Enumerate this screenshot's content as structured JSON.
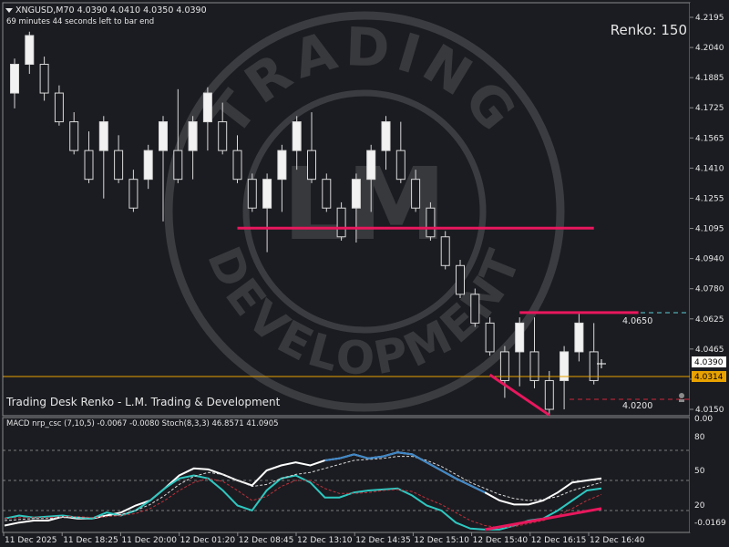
{
  "header": {
    "symbol_line": "XNGUSD,M70  4.0390 4.0410 4.0350 4.0390",
    "countdown": "69 minutes 44 seconds left to bar end",
    "renko_label": "Renko: 150",
    "footer_caption": "Trading Desk Renko - L.M. Trading & Development"
  },
  "watermark": {
    "words": [
      "TRADING",
      "DEVELOPMENT",
      "LM"
    ]
  },
  "price_axis": {
    "ticks": [
      "4.2195",
      "4.2040",
      "4.1885",
      "4.1725",
      "4.1565",
      "4.1410",
      "4.1255",
      "4.1095",
      "4.0940",
      "4.0780",
      "4.0625",
      "4.0465",
      "4.0310",
      "4.0150"
    ],
    "current_price": "4.0390",
    "orange_line_price": "4.0314",
    "orange_line_color": "#e8a200"
  },
  "levels": {
    "upper_dashed": {
      "label": "4.0650",
      "color": "#5ecbd6"
    },
    "lower_dashed": {
      "label": "4.0200",
      "color": "#d1263b"
    }
  },
  "time_axis": [
    "11 Dec 2025",
    "11 Dec 18:25",
    "11 Dec 20:00",
    "12 Dec 01:20",
    "12 Dec 08:45",
    "12 Dec 13:10",
    "12 Dec 14:35",
    "12 Dec 15:10",
    "12 Dec 15:40",
    "12 Dec 16:15",
    "12 Dec 16:40"
  ],
  "indicator": {
    "title": "MACD nrp_csc (7,10,5) -0.0067 -0.0080  Stoch(8,3,3) 46.8571 41.0905",
    "ticks": [
      "80",
      "50",
      "20",
      "-0.0169"
    ],
    "top_tick": "0.00"
  },
  "colors": {
    "background": "#1b1c21",
    "bull_body": "#f2f2f2",
    "bear_body": "#1b1c21",
    "candle_border": "#d9d9d9",
    "trendline": "#e8175d",
    "macd_blue": "#3c86c8",
    "stoch_cyan": "#2ec7c0"
  },
  "chart_data": [
    {
      "type": "candlestick",
      "title": "XNGUSD,M70",
      "note": "Renko bricks; each brick [open, close], wick low/high",
      "ylim": [
        4.011,
        4.225
      ],
      "bricks": [
        {
          "open": 4.18,
          "close": 4.195,
          "low": 4.172,
          "high": 4.198
        },
        {
          "open": 4.195,
          "close": 4.21,
          "low": 4.19,
          "high": 4.212
        },
        {
          "open": 4.195,
          "close": 4.18,
          "low": 4.176,
          "high": 4.199
        },
        {
          "open": 4.18,
          "close": 4.165,
          "low": 4.163,
          "high": 4.184
        },
        {
          "open": 4.165,
          "close": 4.15,
          "low": 4.148,
          "high": 4.17
        },
        {
          "open": 4.15,
          "close": 4.135,
          "low": 4.133,
          "high": 4.16
        },
        {
          "open": 4.15,
          "close": 4.165,
          "low": 4.125,
          "high": 4.168
        },
        {
          "open": 4.15,
          "close": 4.135,
          "low": 4.133,
          "high": 4.158
        },
        {
          "open": 4.135,
          "close": 4.12,
          "low": 4.118,
          "high": 4.14
        },
        {
          "open": 4.135,
          "close": 4.15,
          "low": 4.13,
          "high": 4.153
        },
        {
          "open": 4.15,
          "close": 4.165,
          "low": 4.113,
          "high": 4.168
        },
        {
          "open": 4.15,
          "close": 4.135,
          "low": 4.133,
          "high": 4.182
        },
        {
          "open": 4.15,
          "close": 4.165,
          "low": 4.135,
          "high": 4.168
        },
        {
          "open": 4.165,
          "close": 4.18,
          "low": 4.15,
          "high": 4.183
        },
        {
          "open": 4.165,
          "close": 4.15,
          "low": 4.148,
          "high": 4.175
        },
        {
          "open": 4.15,
          "close": 4.135,
          "low": 4.133,
          "high": 4.158
        },
        {
          "open": 4.135,
          "close": 4.12,
          "low": 4.118,
          "high": 4.138
        },
        {
          "open": 4.12,
          "close": 4.135,
          "low": 4.097,
          "high": 4.138
        },
        {
          "open": 4.135,
          "close": 4.15,
          "low": 4.118,
          "high": 4.153
        },
        {
          "open": 4.15,
          "close": 4.165,
          "low": 4.14,
          "high": 4.168
        },
        {
          "open": 4.15,
          "close": 4.135,
          "low": 4.133,
          "high": 4.17
        },
        {
          "open": 4.135,
          "close": 4.12,
          "low": 4.118,
          "high": 4.138
        },
        {
          "open": 4.12,
          "close": 4.105,
          "low": 4.103,
          "high": 4.123
        },
        {
          "open": 4.12,
          "close": 4.135,
          "low": 4.102,
          "high": 4.138
        },
        {
          "open": 4.135,
          "close": 4.15,
          "low": 4.118,
          "high": 4.153
        },
        {
          "open": 4.15,
          "close": 4.165,
          "low": 4.14,
          "high": 4.168
        },
        {
          "open": 4.15,
          "close": 4.135,
          "low": 4.133,
          "high": 4.165
        },
        {
          "open": 4.135,
          "close": 4.12,
          "low": 4.118,
          "high": 4.14
        },
        {
          "open": 4.12,
          "close": 4.105,
          "low": 4.103,
          "high": 4.123
        },
        {
          "open": 4.105,
          "close": 4.09,
          "low": 4.088,
          "high": 4.108
        },
        {
          "open": 4.09,
          "close": 4.075,
          "low": 4.073,
          "high": 4.093
        },
        {
          "open": 4.075,
          "close": 4.06,
          "low": 4.058,
          "high": 4.078
        },
        {
          "open": 4.06,
          "close": 4.045,
          "low": 4.043,
          "high": 4.063
        },
        {
          "open": 4.045,
          "close": 4.03,
          "low": 4.021,
          "high": 4.048
        },
        {
          "open": 4.045,
          "close": 4.06,
          "low": 4.027,
          "high": 4.063
        },
        {
          "open": 4.045,
          "close": 4.03,
          "low": 4.026,
          "high": 4.063
        },
        {
          "open": 4.03,
          "close": 4.015,
          "low": 4.012,
          "high": 4.035
        },
        {
          "open": 4.03,
          "close": 4.045,
          "low": 4.015,
          "high": 4.048
        },
        {
          "open": 4.045,
          "close": 4.06,
          "low": 4.04,
          "high": 4.066
        },
        {
          "open": 4.045,
          "close": 4.03,
          "low": 4.028,
          "high": 4.06
        }
      ],
      "lines": [
        {
          "kind": "horizontal",
          "price": 4.1095,
          "from_brick": 15,
          "to_brick": 39,
          "color": "#e8175d"
        },
        {
          "kind": "horizontal",
          "price": 4.0655,
          "from_brick": 34,
          "to_brick": 42,
          "color": "#e8175d"
        },
        {
          "kind": "segment",
          "from": [
            32,
            4.033
          ],
          "to": [
            36,
            4.012
          ],
          "color": "#e8175d"
        }
      ]
    },
    {
      "type": "line",
      "title": "MACD nrp_csc (7,10,5) / Stoch(8,3,3)",
      "ylim": [
        0,
        100
      ],
      "series": [
        {
          "name": "Stoch",
          "color": "#ffffff",
          "width": 2,
          "values": [
            5,
            8,
            10,
            10,
            14,
            12,
            12,
            15,
            18,
            25,
            30,
            42,
            55,
            62,
            61,
            56,
            50,
            45,
            60,
            65,
            68,
            65,
            70,
            72,
            76,
            72,
            74,
            78,
            76,
            68,
            60,
            52,
            45,
            38,
            30,
            26,
            26,
            30,
            38,
            48,
            50,
            52
          ]
        },
        {
          "name": "MACD",
          "color": "#2ec7c0",
          "width": 2,
          "values": [
            12,
            15,
            13,
            14,
            15,
            13,
            12,
            18,
            15,
            20,
            30,
            42,
            52,
            55,
            52,
            40,
            25,
            20,
            40,
            52,
            55,
            48,
            33,
            33,
            38,
            40,
            41,
            42,
            35,
            25,
            20,
            8,
            2,
            1,
            1,
            5,
            10,
            12,
            20,
            30,
            40,
            42
          ]
        },
        {
          "name": "Signal1",
          "color": "#d9d9d9",
          "dashed": true,
          "values": [
            10,
            11,
            12,
            12,
            13,
            13,
            13,
            14,
            16,
            20,
            26,
            35,
            46,
            54,
            58,
            56,
            50,
            44,
            46,
            52,
            56,
            58,
            62,
            66,
            70,
            71,
            72,
            74,
            74,
            70,
            64,
            56,
            48,
            42,
            36,
            32,
            30,
            31,
            34,
            40,
            44,
            48
          ]
        },
        {
          "name": "Signal2",
          "color": "#c0303a",
          "dashed": true,
          "values": [
            12,
            13,
            13,
            13,
            14,
            14,
            13,
            14,
            15,
            17,
            22,
            30,
            40,
            48,
            52,
            49,
            40,
            30,
            34,
            44,
            50,
            50,
            42,
            37,
            37,
            38,
            40,
            41,
            39,
            32,
            26,
            18,
            10,
            5,
            3,
            4,
            7,
            10,
            15,
            22,
            30,
            36
          ]
        }
      ],
      "lines": [
        {
          "kind": "segment",
          "from": [
            33,
            1
          ],
          "to": [
            41,
            22
          ],
          "color": "#e8175d"
        }
      ]
    }
  ]
}
